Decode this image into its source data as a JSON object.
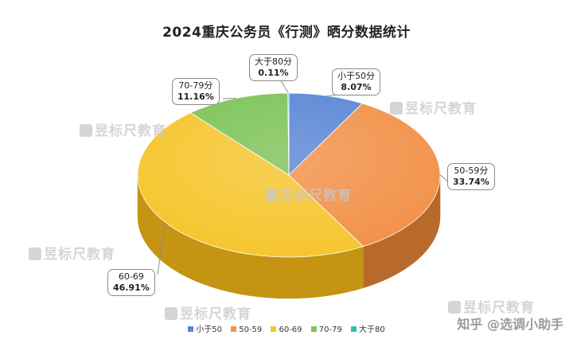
{
  "chart_data": {
    "type": "pie",
    "title": "2024重庆公务员《行测》晒分数据统计",
    "categories": [
      "小于50",
      "50-59",
      "60-69",
      "70-79",
      "大于80"
    ],
    "callout_labels": [
      "小于50分",
      "50-59分",
      "60-69",
      "70-79分",
      "大于80分"
    ],
    "values": [
      8.07,
      33.74,
      46.91,
      11.16,
      0.11
    ],
    "value_labels": [
      "8.07%",
      "33.74%",
      "46.91%",
      "11.16%",
      "0.11%"
    ],
    "colors": [
      "#5b87d6",
      "#f2924a",
      "#f6c630",
      "#7fc35a",
      "#34bfae"
    ],
    "side_colors": [
      "#3c63a8",
      "#b86a2c",
      "#c49412",
      "#5a9a38",
      "#22907f"
    ],
    "legend_position": "bottom",
    "style": "3d"
  },
  "watermark": "昱标尺教育",
  "brand": "知乎 @选调小助手"
}
